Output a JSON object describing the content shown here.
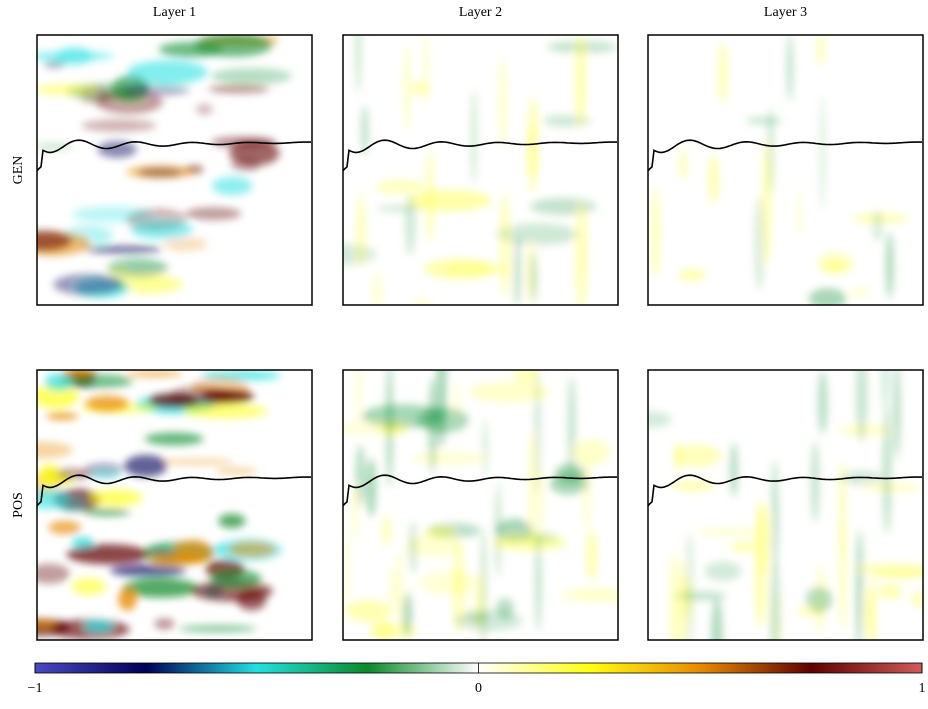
{
  "chart_data": {
    "type": "heatmap",
    "columns": [
      "Layer 1",
      "Layer 2",
      "Layer 3"
    ],
    "rows": [
      "GEN",
      "POS"
    ],
    "colorbar": {
      "lim": [
        -1,
        1
      ],
      "ticks": [
        {
          "value": -1,
          "label": "−1"
        },
        0,
        1
      ],
      "colors": [
        "#4a4ac4",
        "#000058",
        "#22e0e0",
        "#0a8a2a",
        "#ffffff",
        "#ffff10",
        "#e88a00",
        "#600000",
        "#d05a5a"
      ]
    }
  }
}
